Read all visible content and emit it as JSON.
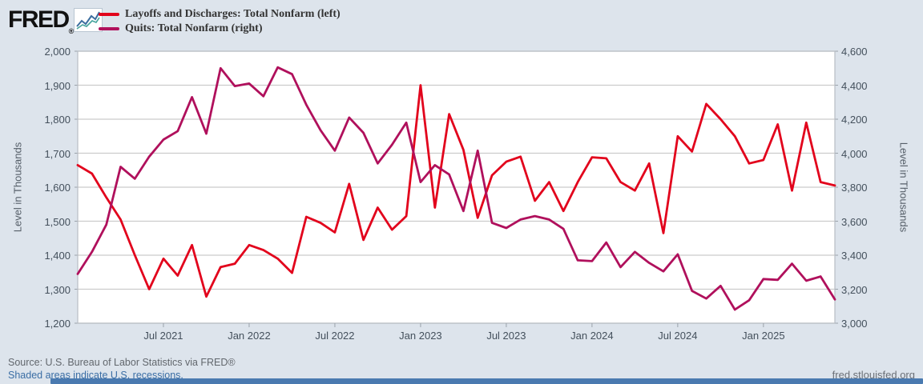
{
  "header": {
    "logo_text": "FRED",
    "logo_reg": "®"
  },
  "legend": [
    {
      "label": "Layoffs and Discharges: Total Nonfarm (left)",
      "color": "#e2031c"
    },
    {
      "label": "Quits: Total Nonfarm (right)",
      "color": "#b0105c"
    }
  ],
  "chart_data": {
    "type": "line",
    "x": [
      "2021-01",
      "2021-02",
      "2021-03",
      "2021-04",
      "2021-05",
      "2021-06",
      "2021-07",
      "2021-08",
      "2021-09",
      "2021-10",
      "2021-11",
      "2021-12",
      "2022-01",
      "2022-02",
      "2022-03",
      "2022-04",
      "2022-05",
      "2022-06",
      "2022-07",
      "2022-08",
      "2022-09",
      "2022-10",
      "2022-11",
      "2022-12",
      "2023-01",
      "2023-02",
      "2023-03",
      "2023-04",
      "2023-05",
      "2023-06",
      "2023-07",
      "2023-08",
      "2023-09",
      "2023-10",
      "2023-11",
      "2023-12",
      "2024-01",
      "2024-02",
      "2024-03",
      "2024-04",
      "2024-05",
      "2024-06",
      "2024-07",
      "2024-08",
      "2024-09",
      "2024-10",
      "2024-11",
      "2024-12",
      "2025-01",
      "2025-02",
      "2025-03",
      "2025-04",
      "2025-05",
      "2025-06"
    ],
    "series": [
      {
        "name": "Layoffs and Discharges: Total Nonfarm",
        "axis": "left",
        "color": "#e2031c",
        "values": [
          1665,
          1640,
          1570,
          1505,
          1400,
          1300,
          1390,
          1340,
          1430,
          1278,
          1365,
          1375,
          1430,
          1415,
          1390,
          1348,
          1513,
          1495,
          1467,
          1610,
          1445,
          1540,
          1475,
          1515,
          1900,
          1540,
          1815,
          1710,
          1510,
          1635,
          1675,
          1690,
          1560,
          1615,
          1530,
          1615,
          1688,
          1685,
          1615,
          1590,
          1670,
          1465,
          1750,
          1705,
          1845,
          1800,
          1750,
          1670,
          1680,
          1785,
          1590,
          1790,
          1615,
          1605
        ]
      },
      {
        "name": "Quits: Total Nonfarm",
        "axis": "right",
        "color": "#b0105c",
        "values": [
          3290,
          3420,
          3580,
          3920,
          3850,
          3980,
          4080,
          4130,
          4330,
          4115,
          4500,
          4395,
          4410,
          4335,
          4505,
          4465,
          4285,
          4135,
          4015,
          4210,
          4120,
          3940,
          4050,
          4180,
          3830,
          3930,
          3875,
          3660,
          4015,
          3590,
          3560,
          3610,
          3630,
          3610,
          3555,
          3370,
          3365,
          3475,
          3330,
          3420,
          3355,
          3305,
          3405,
          3190,
          3145,
          3220,
          3080,
          3135,
          3260,
          3255,
          3350,
          3250,
          3275,
          3140
        ]
      }
    ],
    "left_axis": {
      "label": "Level in Thousands",
      "min": 1200,
      "max": 2000,
      "ticks": [
        "2,000",
        "1,900",
        "1,800",
        "1,700",
        "1,600",
        "1,500",
        "1,400",
        "1,300",
        "1,200"
      ]
    },
    "right_axis": {
      "label": "Level in Thousands",
      "min": 3000,
      "max": 4600,
      "ticks": [
        "4,600",
        "4,400",
        "4,200",
        "4,000",
        "3,800",
        "3,600",
        "3,400",
        "3,200",
        "3,000"
      ]
    },
    "x_ticks": [
      {
        "label": "Jul 2021",
        "index": 6
      },
      {
        "label": "Jan 2022",
        "index": 12
      },
      {
        "label": "Jul 2022",
        "index": 18
      },
      {
        "label": "Jan 2023",
        "index": 24
      },
      {
        "label": "Jul 2023",
        "index": 30
      },
      {
        "label": "Jan 2024",
        "index": 36
      },
      {
        "label": "Jul 2024",
        "index": 42
      },
      {
        "label": "Jan 2025",
        "index": 48
      }
    ],
    "grid": "horizontal",
    "legend_position": "top",
    "plot_bg": "#ffffff",
    "grid_color": "#cccccc",
    "border_color": "#b8bdc4"
  },
  "footer": {
    "source": "Source: U.S. Bureau of Labor Statistics via FRED®",
    "shaded_note": "Shaded areas indicate U.S. recessions.",
    "site": "fred.stlouisfed.org"
  }
}
